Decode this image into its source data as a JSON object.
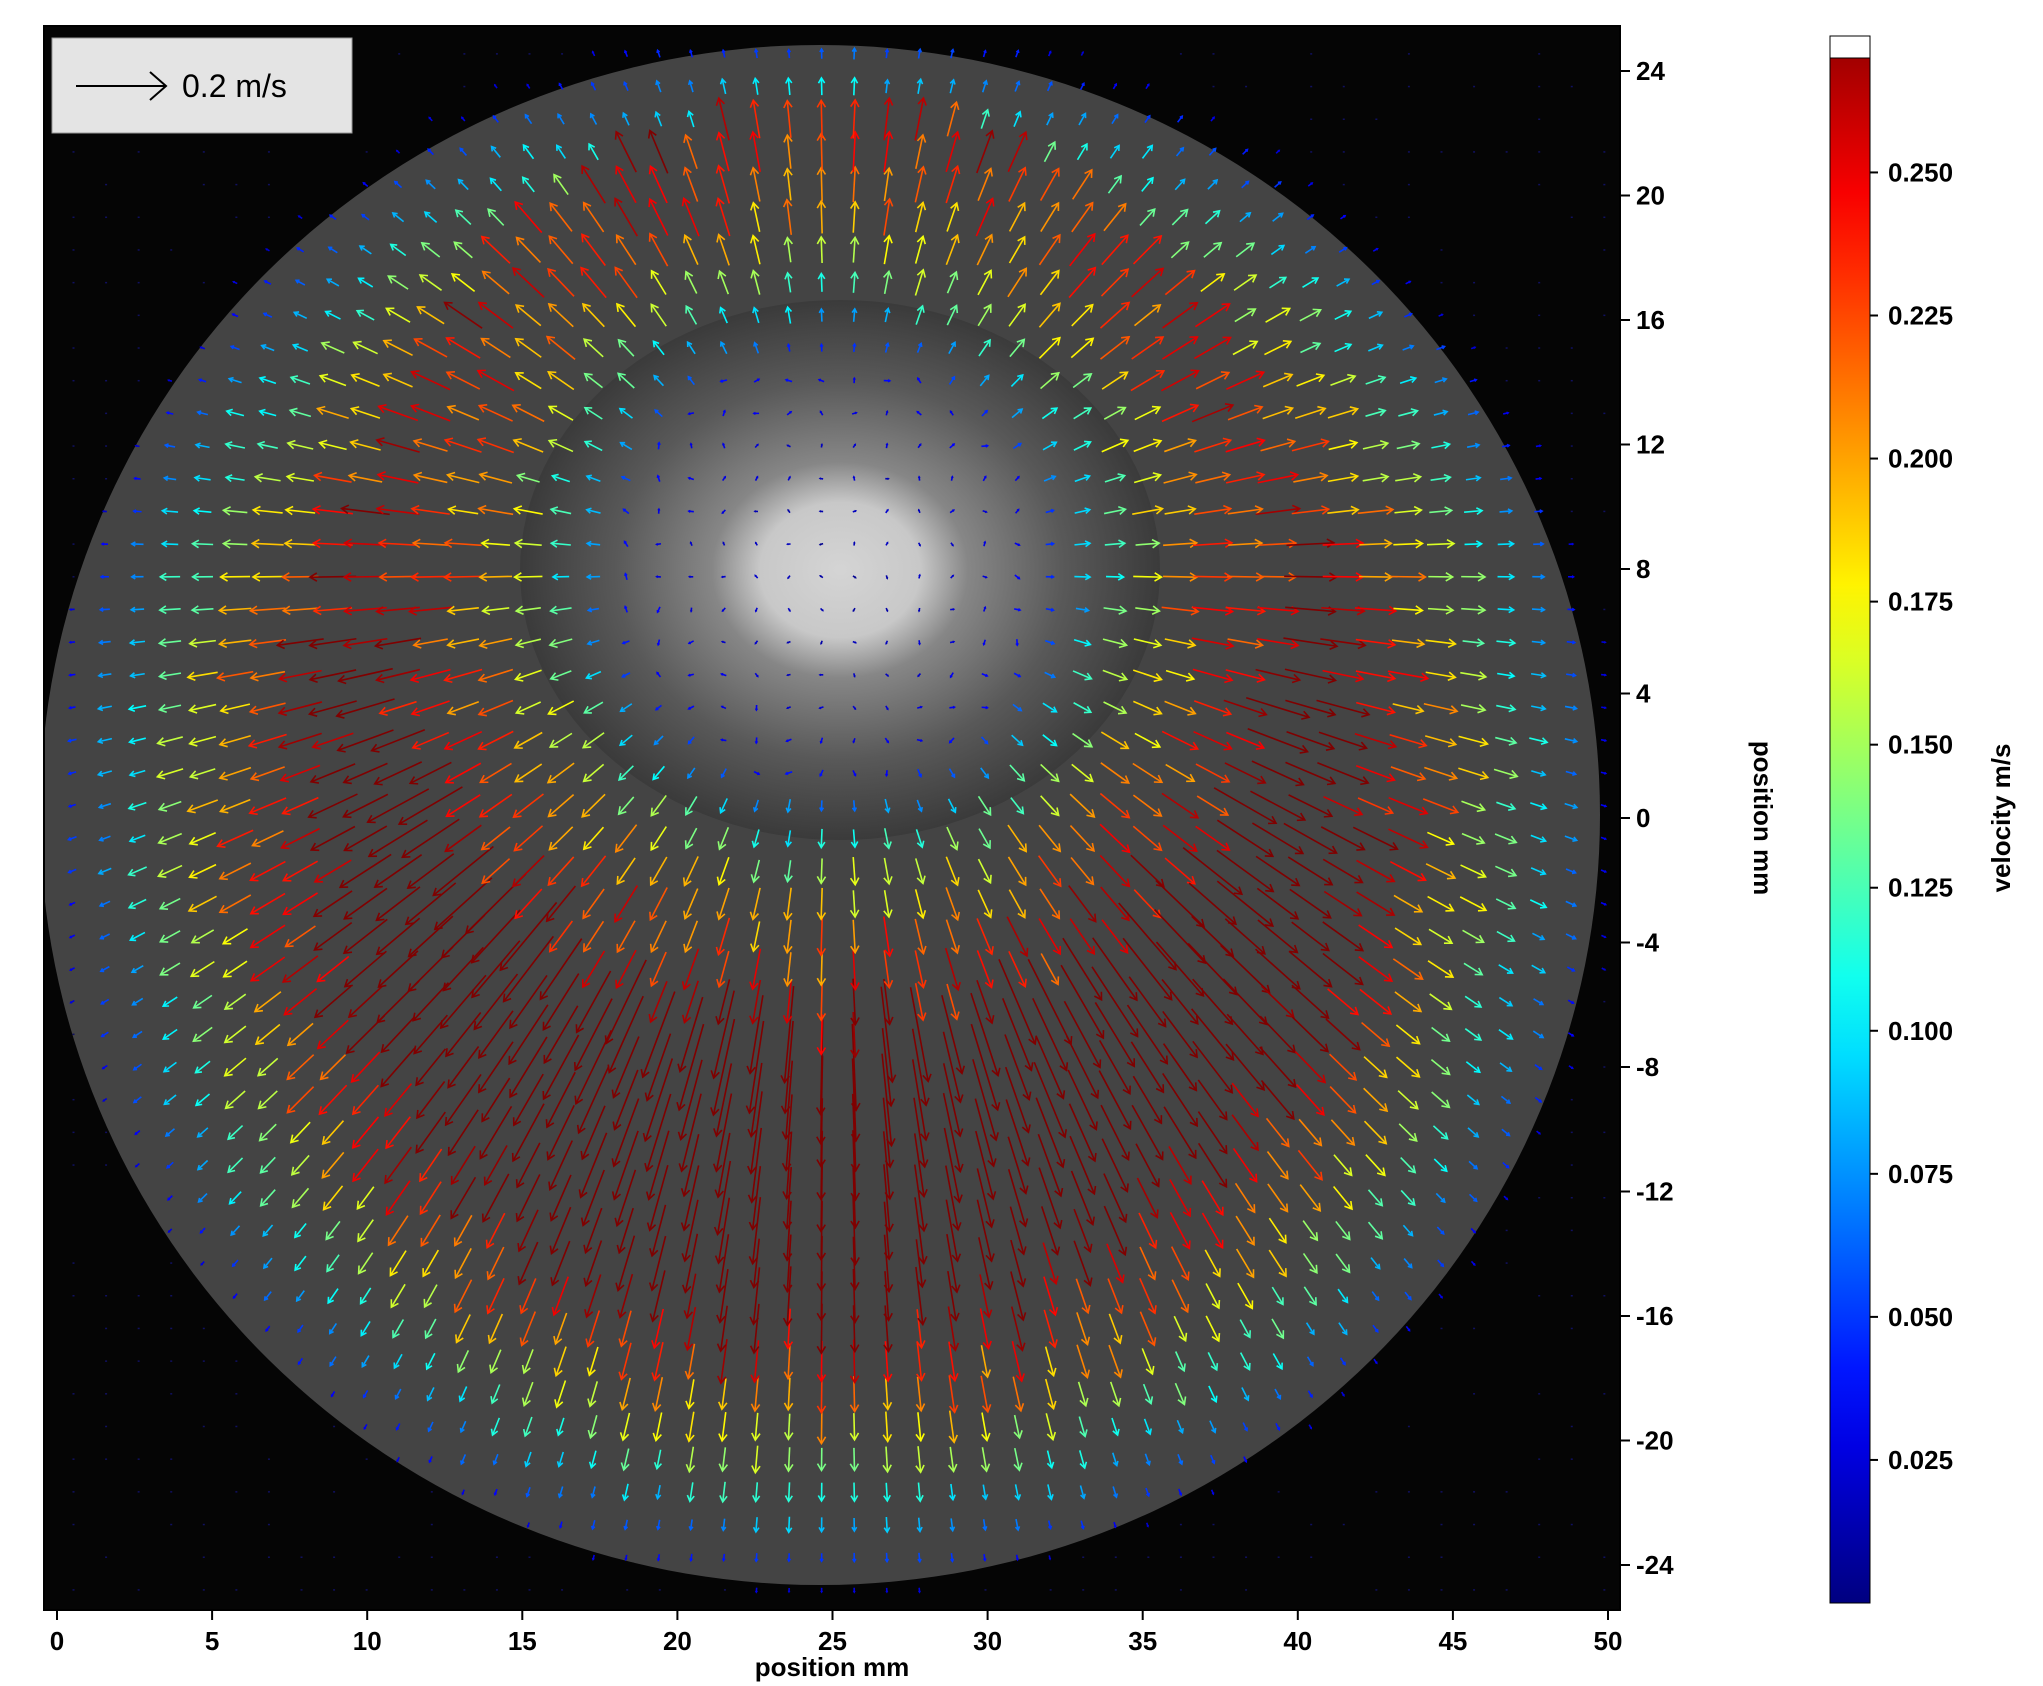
{
  "chart_data": {
    "type": "vector-field",
    "xlabel": "position mm",
    "ylabel": "position mm",
    "colorbar_label": "velocity m/s",
    "xlim": [
      0,
      50
    ],
    "ylim": [
      -25,
      25
    ],
    "x_ticks": [
      0,
      5,
      10,
      15,
      20,
      25,
      30,
      35,
      40,
      45,
      50
    ],
    "y_ticks": [
      24,
      20,
      16,
      12,
      8,
      4,
      0,
      -4,
      -8,
      -12,
      -16,
      -20,
      -24
    ],
    "colorbar_range": [
      0,
      0.27
    ],
    "colorbar_ticks": [
      "0.250",
      "0.225",
      "0.200",
      "0.175",
      "0.150",
      "0.125",
      "0.100",
      "0.075",
      "0.050",
      "0.025"
    ],
    "colorbar_tick_values": [
      0.25,
      0.225,
      0.2,
      0.175,
      0.15,
      0.125,
      0.1,
      0.075,
      0.05,
      0.025
    ],
    "reference_vector": {
      "label": "0.2 m/s",
      "value": 0.2
    },
    "field": {
      "description": "radial outward flow from a stagnation region",
      "center_x": 25,
      "center_y": 8,
      "core_radius_mm": 7,
      "peak_speed": 0.24,
      "peak_radius_mm": 15,
      "domain_radius_mm": 25,
      "grid_spacing_mm": 1.05
    },
    "colors": {
      "background": "#050505",
      "disk": "#4a4a4a",
      "core": "#d8d8d8"
    }
  }
}
